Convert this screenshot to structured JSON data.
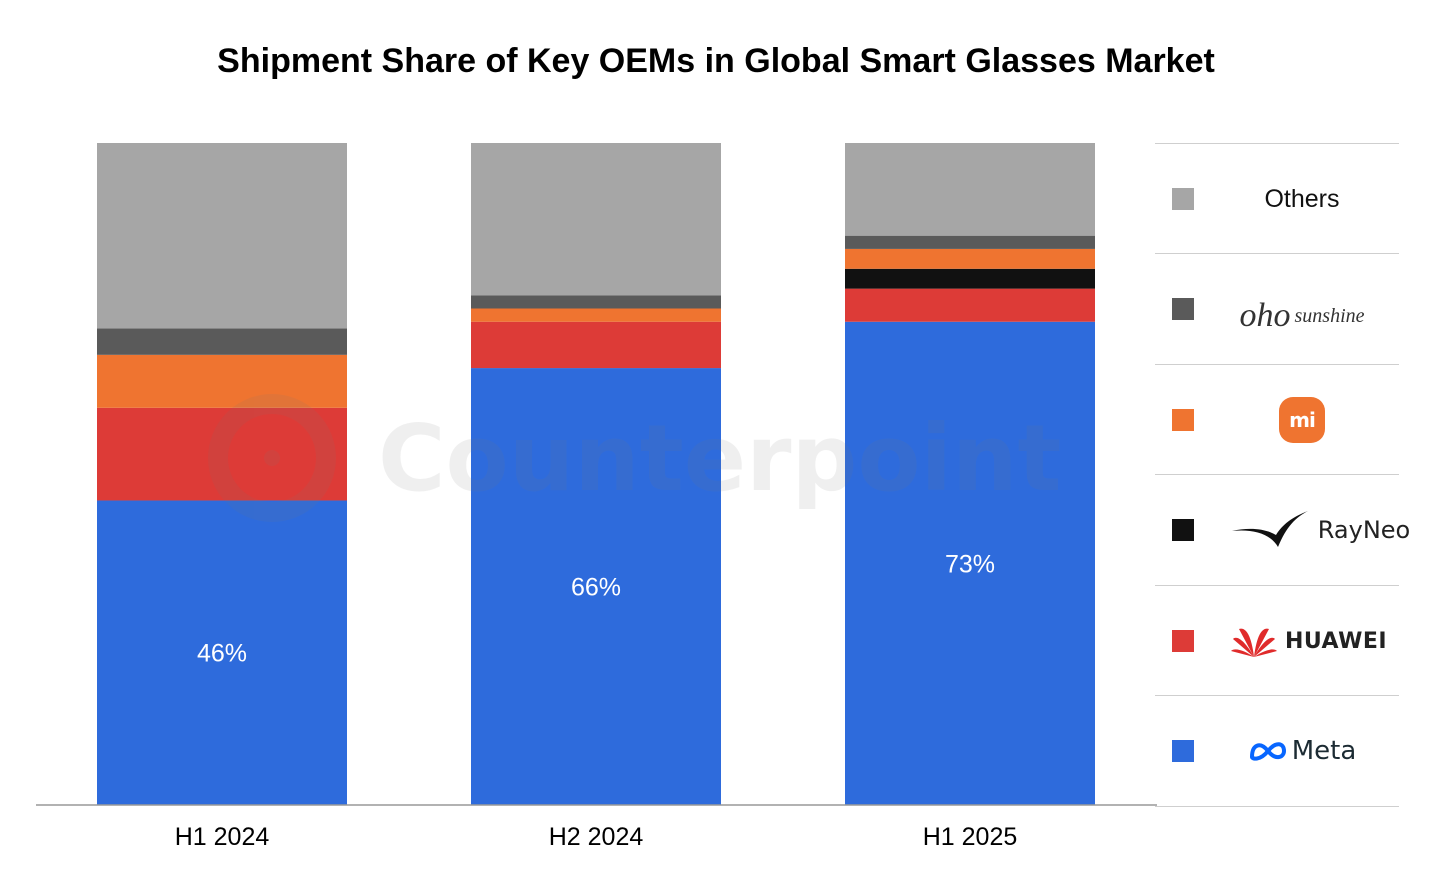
{
  "chart_data": {
    "type": "bar",
    "stacked": true,
    "title": "Shipment Share of Key OEMs in Global Smart Glasses Market",
    "categories": [
      "H1 2024",
      "H2 2024",
      "H1 2025"
    ],
    "ylim": [
      0,
      100
    ],
    "grid": false,
    "legend_position": "right",
    "series": [
      {
        "name": "Meta",
        "color": "#2e6bdc",
        "values": [
          46,
          66,
          73
        ],
        "labels": [
          "46%",
          "66%",
          "73%"
        ]
      },
      {
        "name": "HUAWEI",
        "color": "#dd3b37",
        "values": [
          14,
          7,
          5
        ],
        "labels": [
          "",
          "",
          ""
        ]
      },
      {
        "name": "RayNeo",
        "color": "#111111",
        "values": [
          0,
          0,
          3
        ],
        "labels": [
          "",
          "",
          ""
        ]
      },
      {
        "name": "mi",
        "color": "#ef7430",
        "values": [
          8,
          2,
          3
        ],
        "labels": [
          "",
          "",
          ""
        ]
      },
      {
        "name": "oho sunshine",
        "color": "#5a5a5a",
        "values": [
          4,
          2,
          2
        ],
        "labels": [
          "",
          "",
          ""
        ]
      },
      {
        "name": "Others",
        "color": "#a6a6a6",
        "values": [
          28,
          23,
          14
        ],
        "labels": [
          "",
          "",
          ""
        ]
      }
    ]
  },
  "legend": {
    "others": "Others",
    "oho_main": "oho",
    "oho_sub": "sunshine",
    "mi": "mi",
    "rayneo": "RayNeo",
    "huawei": "HUAWEI",
    "meta": "Meta"
  },
  "watermark": "Counterpoint"
}
